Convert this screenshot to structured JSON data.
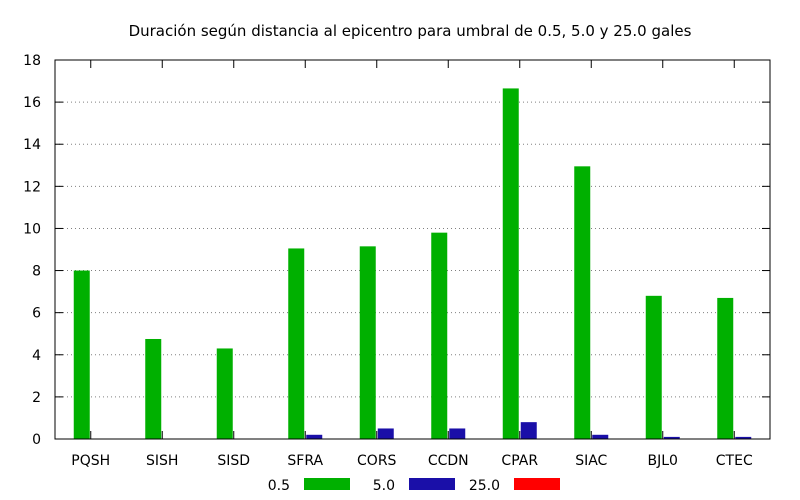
{
  "chart_data": {
    "type": "bar",
    "title": "Duración según distancia al epicentro para umbral de 0.5, 5.0 y 25.0 gales",
    "xlabel": "",
    "ylabel": "",
    "ylim": [
      0,
      18
    ],
    "yticks": [
      "0",
      "2",
      "4",
      "6",
      "8",
      "10",
      "12",
      "14",
      "16",
      "18"
    ],
    "grid": true,
    "legend_position": "bottom",
    "categories": [
      "PQSH",
      "SISH",
      "SISD",
      "SFRA",
      "CORS",
      "CCDN",
      "CPAR",
      "SIAC",
      "BJL0",
      "CTEC"
    ],
    "series": [
      {
        "name": "0.5",
        "color": "#00b000",
        "values": [
          8.0,
          4.75,
          4.3,
          9.05,
          9.15,
          9.8,
          16.65,
          12.95,
          6.8,
          6.7
        ]
      },
      {
        "name": "5.0",
        "color": "#1a0fa8",
        "values": [
          0,
          0,
          0,
          0.2,
          0.5,
          0.5,
          0.8,
          0.2,
          0.1,
          0.1
        ]
      },
      {
        "name": "25.0",
        "color": "#ff0000",
        "values": [
          0,
          0,
          0,
          0,
          0,
          0,
          0,
          0,
          0,
          0
        ]
      }
    ]
  }
}
